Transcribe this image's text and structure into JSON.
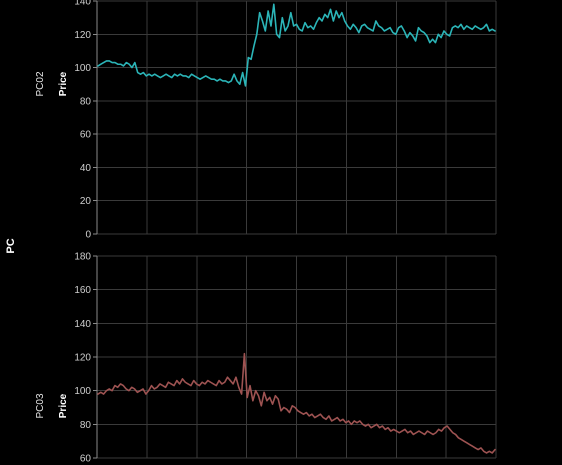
{
  "figure": {
    "group_label": "PC"
  },
  "chart_data": [
    {
      "type": "line",
      "panel_label": "PC02",
      "ylabel": "Price",
      "xlabel": "",
      "ylim": [
        0,
        140
      ],
      "yticks": [
        0,
        20,
        40,
        60,
        80,
        100,
        120,
        140
      ],
      "x_grid_count": 8,
      "color": "#2bb5b8",
      "grid": true,
      "series": [
        {
          "values": [
            101,
            102,
            103,
            104,
            104,
            103,
            103,
            102,
            102,
            101,
            103,
            102,
            100,
            103,
            97,
            96,
            97,
            95,
            96,
            95,
            96,
            95,
            94,
            95,
            96,
            95,
            94,
            96,
            95,
            96,
            95,
            95,
            94,
            96,
            95,
            94,
            93,
            94,
            95,
            94,
            93,
            93,
            92,
            93,
            92,
            92,
            91,
            92,
            96,
            92,
            90,
            97,
            89,
            106,
            105,
            113,
            120,
            133,
            128,
            122,
            134,
            125,
            138,
            120,
            118,
            130,
            122,
            125,
            133,
            125,
            126,
            123,
            122,
            127,
            124,
            125,
            123,
            127,
            130,
            128,
            132,
            130,
            135,
            128,
            134,
            130,
            133,
            128,
            125,
            123,
            126,
            124,
            121,
            125,
            126,
            124,
            123,
            122,
            128,
            125,
            124,
            122,
            123,
            124,
            121,
            120,
            124,
            125,
            122,
            118,
            121,
            119,
            116,
            124,
            122,
            121,
            119,
            115,
            117,
            115,
            120,
            118,
            122,
            120,
            119,
            124,
            125,
            124,
            126,
            123,
            125,
            124,
            123,
            125,
            124,
            123,
            124,
            126,
            122,
            123,
            122
          ]
        }
      ]
    },
    {
      "type": "line",
      "panel_label": "PC03",
      "ylabel": "Price",
      "xlabel": "",
      "ylim": [
        60,
        180
      ],
      "yticks": [
        60,
        80,
        100,
        120,
        140,
        160,
        180
      ],
      "x_grid_count": 8,
      "color": "#9e5352",
      "grid": true,
      "series": [
        {
          "values": [
            98,
            99,
            98,
            100,
            101,
            100,
            103,
            102,
            104,
            103,
            101,
            100,
            102,
            101,
            99,
            100,
            101,
            98,
            100,
            103,
            101,
            102,
            104,
            103,
            102,
            105,
            104,
            103,
            106,
            104,
            107,
            105,
            104,
            103,
            106,
            104,
            103,
            105,
            104,
            106,
            105,
            104,
            103,
            106,
            104,
            105,
            108,
            106,
            104,
            108,
            102,
            98,
            122,
            96,
            103,
            94,
            100,
            97,
            91,
            99,
            94,
            96,
            92,
            97,
            95,
            88,
            90,
            89,
            87,
            91,
            90,
            88,
            87,
            86,
            87,
            85,
            86,
            84,
            85,
            86,
            84,
            83,
            85,
            82,
            83,
            84,
            82,
            83,
            81,
            82,
            80,
            82,
            81,
            82,
            80,
            79,
            80,
            78,
            79,
            80,
            78,
            79,
            77,
            78,
            76,
            77,
            76,
            75,
            76,
            77,
            75,
            76,
            74,
            75,
            76,
            75,
            74,
            76,
            75,
            74,
            75,
            77,
            76,
            78,
            79,
            77,
            75,
            74,
            72,
            71,
            70,
            69,
            68,
            67,
            66,
            65,
            66,
            64,
            63,
            64,
            63,
            65
          ]
        }
      ]
    }
  ]
}
